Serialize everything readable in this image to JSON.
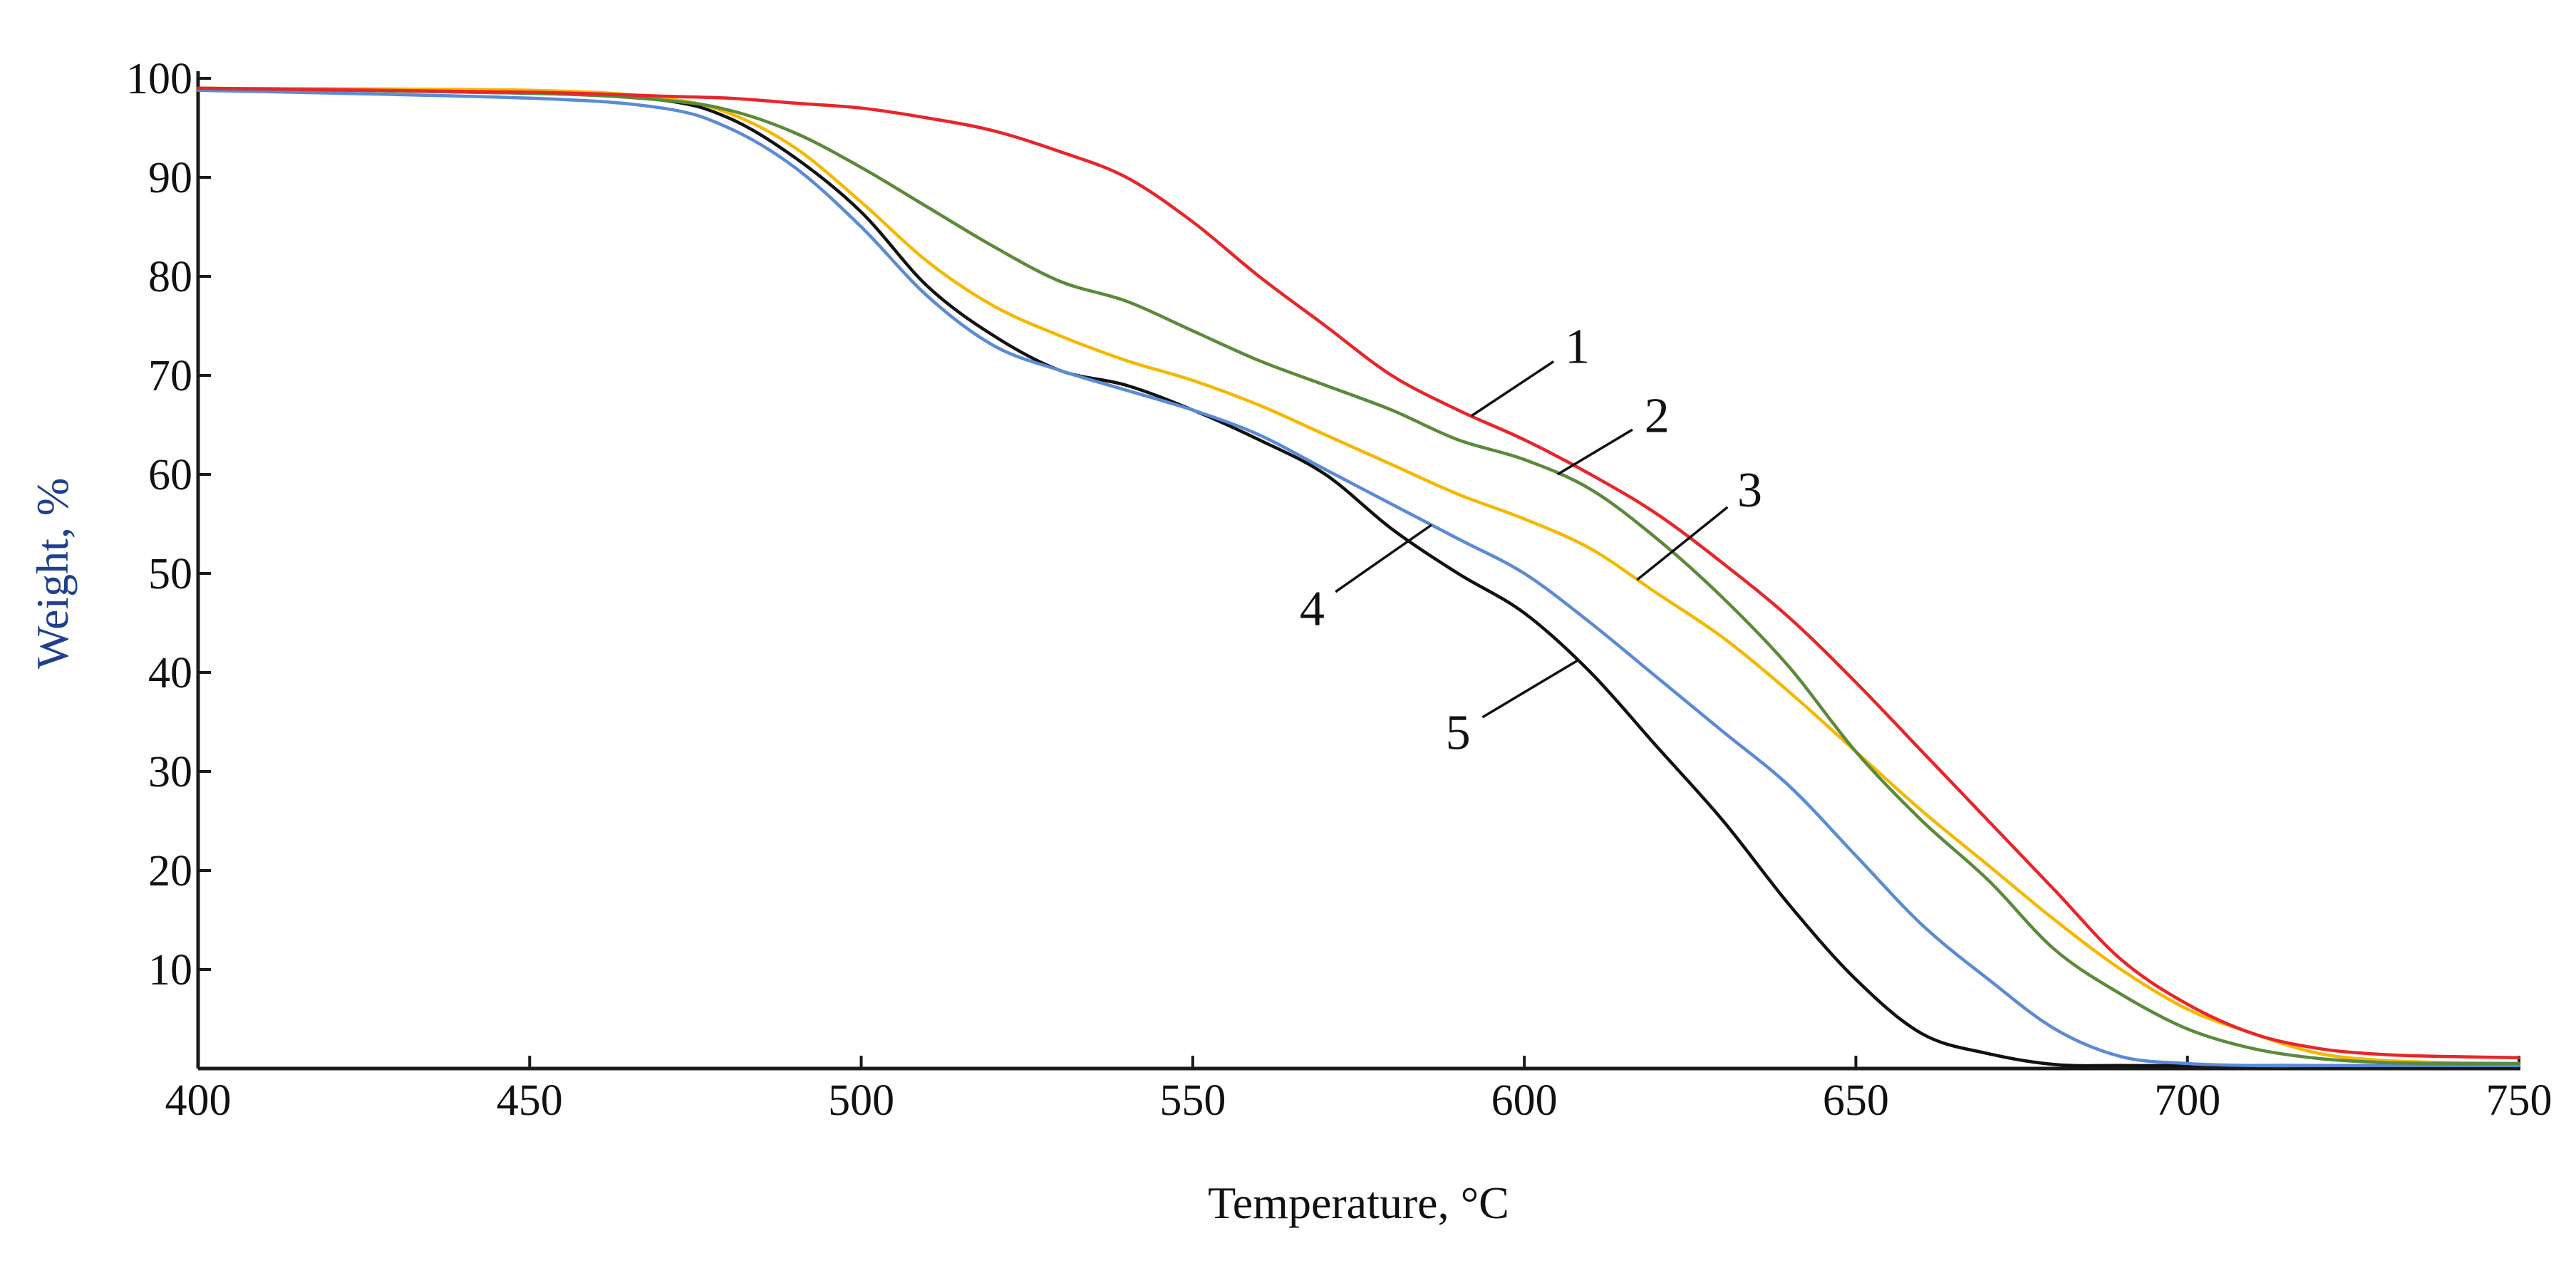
{
  "chart_data": {
    "type": "line",
    "title": "",
    "xlabel": "Temperature, °C",
    "ylabel": "Weight, %",
    "xlim": [
      400,
      750
    ],
    "ylim": [
      0,
      100
    ],
    "x_ticks": [
      400,
      450,
      500,
      550,
      600,
      650,
      700,
      750
    ],
    "y_ticks": [
      10,
      20,
      30,
      40,
      50,
      60,
      70,
      80,
      90,
      100
    ],
    "grid": false,
    "legend": "none",
    "colors": {
      "axis": "#1a1a1a",
      "ylabel": "#1f3f8f",
      "xlabel": "#111111",
      "leader": "#111111"
    },
    "series": [
      {
        "name": "1",
        "color": "#e8252b",
        "x": [
          400,
          450,
          470,
          480,
          490,
          500,
          510,
          520,
          530,
          540,
          550,
          560,
          570,
          580,
          590,
          600,
          610,
          620,
          630,
          640,
          650,
          660,
          670,
          680,
          690,
          700,
          710,
          720,
          730,
          740,
          750
        ],
        "y": [
          99,
          98.6,
          98.2,
          98,
          97.5,
          97,
          96,
          94.7,
          92.6,
          90,
          85.5,
          80,
          75,
          70,
          66.5,
          63.5,
          60,
          56,
          51,
          45.5,
          39,
          32,
          25,
          18,
          11,
          6.5,
          3.5,
          2,
          1.4,
          1.2,
          1.1
        ]
      },
      {
        "name": "2",
        "color": "#5a8a3a",
        "x": [
          400,
          450,
          470,
          480,
          490,
          500,
          510,
          520,
          530,
          540,
          550,
          560,
          570,
          580,
          590,
          600,
          610,
          620,
          630,
          640,
          650,
          660,
          670,
          680,
          690,
          700,
          710,
          720,
          730,
          740,
          750
        ],
        "y": [
          99,
          98.5,
          97.8,
          96.8,
          94.5,
          91,
          87,
          83,
          79.5,
          77.5,
          74.5,
          71.5,
          69,
          66.5,
          63.5,
          61.5,
          58.5,
          53.5,
          47.5,
          40.5,
          32,
          25,
          19,
          12,
          7.5,
          4,
          2,
          1,
          0.6,
          0.5,
          0.5
        ]
      },
      {
        "name": "3",
        "color": "#f5b800",
        "x": [
          400,
          450,
          470,
          480,
          490,
          500,
          510,
          520,
          530,
          540,
          550,
          560,
          570,
          580,
          590,
          600,
          610,
          620,
          630,
          640,
          650,
          660,
          670,
          680,
          690,
          700,
          710,
          720,
          730,
          740,
          750
        ],
        "y": [
          99,
          98.8,
          98,
          96.5,
          93,
          87.5,
          81.5,
          77,
          74,
          71.5,
          69.5,
          67,
          64,
          61,
          58,
          55.5,
          52.5,
          48,
          43.5,
          38,
          32,
          26,
          20.5,
          15,
          10,
          6,
          3.5,
          1.5,
          0.8,
          0.6,
          0.5
        ]
      },
      {
        "name": "4",
        "color": "#5b8ad6",
        "x": [
          400,
          450,
          470,
          480,
          490,
          500,
          510,
          520,
          530,
          540,
          550,
          560,
          570,
          580,
          590,
          600,
          610,
          620,
          630,
          640,
          650,
          660,
          670,
          680,
          690,
          700,
          710,
          720,
          730,
          740,
          750
        ],
        "y": [
          98.8,
          98,
          97,
          95,
          91,
          85,
          78,
          73,
          70.5,
          68.5,
          66.5,
          64,
          60.5,
          57,
          53.5,
          50,
          45,
          39.5,
          34,
          28.5,
          21.5,
          14.5,
          9,
          4,
          1.2,
          0.5,
          0.3,
          0.3,
          0.3,
          0.3,
          0.3
        ]
      },
      {
        "name": "5",
        "color": "#111111",
        "x": [
          400,
          450,
          470,
          480,
          490,
          500,
          510,
          520,
          530,
          540,
          550,
          560,
          570,
          580,
          590,
          600,
          610,
          620,
          630,
          640,
          650,
          660,
          670,
          680,
          690,
          700,
          710,
          720,
          730,
          740,
          750
        ],
        "y": [
          99,
          98.5,
          97.8,
          96,
          92,
          86.5,
          79,
          74,
          70.5,
          69,
          66.5,
          63.5,
          60,
          54.5,
          50,
          46,
          40,
          32.5,
          25,
          16.5,
          9,
          3.5,
          1.5,
          0.4,
          0.3,
          0.3,
          0.3,
          0.3,
          0.3,
          0.3,
          0.3
        ]
      }
    ],
    "annotations": [
      {
        "text": "1",
        "series": "1",
        "at_x": 592,
        "label_x": 608,
        "label_y": 73
      },
      {
        "text": "2",
        "series": "2",
        "at_x": 605,
        "label_x": 620,
        "label_y": 66
      },
      {
        "text": "3",
        "series": "3",
        "at_x": 617,
        "label_x": 634,
        "label_y": 58.5
      },
      {
        "text": "4",
        "series": "4",
        "at_x": 586,
        "label_x": 568,
        "label_y": 46.5
      },
      {
        "text": "5",
        "series": "5",
        "at_x": 608,
        "label_x": 590,
        "label_y": 34
      }
    ]
  }
}
